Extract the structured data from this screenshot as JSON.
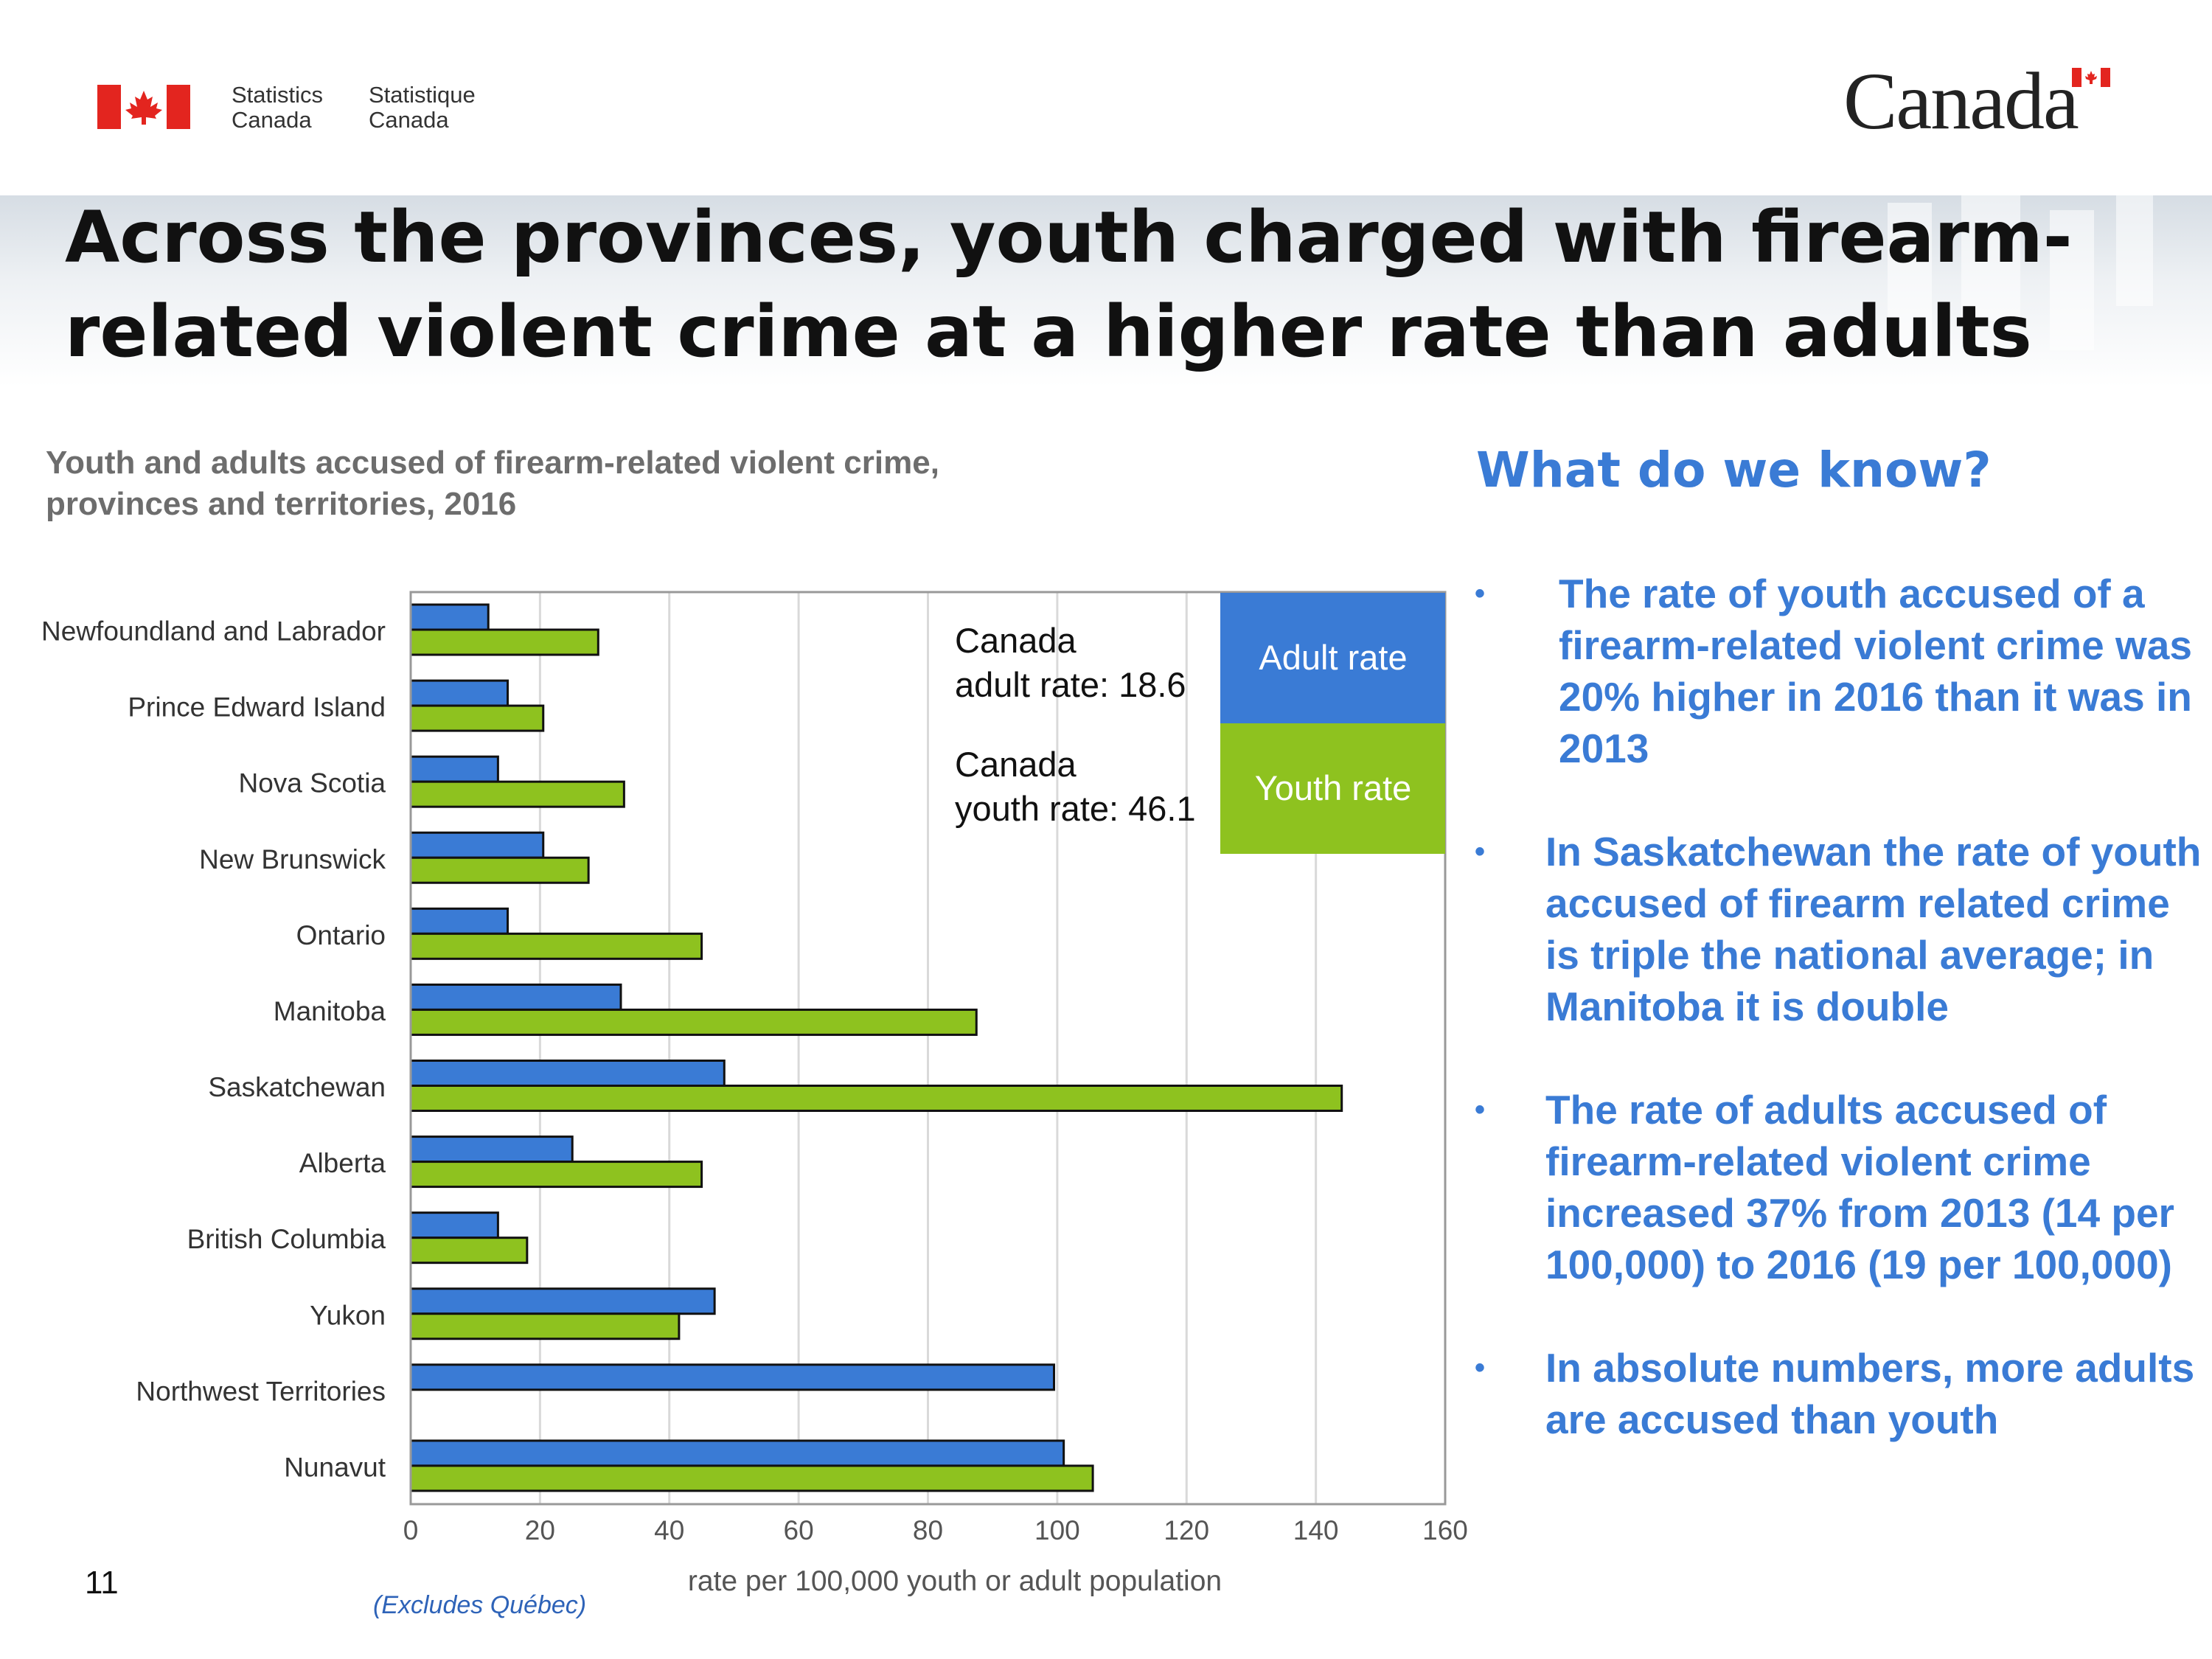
{
  "header": {
    "agency_en": [
      "Statistics",
      "Canada"
    ],
    "agency_fr": [
      "Statistique",
      "Canada"
    ],
    "wordmark": "Canada",
    "colors": {
      "flag_red": "#e3251f"
    }
  },
  "slide": {
    "title_line1": "Across the provinces, youth charged with firearm-",
    "title_line2": "related violent crime at a higher rate than adults",
    "page_number": "11",
    "footnote": "(Excludes Québec)"
  },
  "chart_data": {
    "type": "bar",
    "orientation": "horizontal",
    "title_line1": "Youth and adults accused of firearm-related violent crime,",
    "title_line2": "provinces and territories, 2016",
    "xlabel": "rate per 100,000 youth or adult population",
    "ylabel": "",
    "xlim": [
      0,
      160
    ],
    "xticks": [
      0,
      20,
      40,
      60,
      80,
      100,
      120,
      140,
      160
    ],
    "grid": true,
    "legend_placement": "top-right",
    "categories": [
      "Newfoundland and Labrador",
      "Prince Edward Island",
      "Nova Scotia",
      "New Brunswick",
      "Ontario",
      "Manitoba",
      "Saskatchewan",
      "Alberta",
      "British Columbia",
      "Yukon",
      "Northwest Territories",
      "Nunavut"
    ],
    "series": [
      {
        "name": "Adult rate",
        "color": "#3a7bd5",
        "values": [
          12,
          15,
          13.5,
          20.5,
          15,
          32.5,
          48.5,
          25,
          13.5,
          47,
          99.5,
          101
        ]
      },
      {
        "name": "Youth rate",
        "color": "#8ec21f",
        "values": [
          29,
          20.5,
          33,
          27.5,
          45,
          87.5,
          144,
          45,
          18,
          41.5,
          null,
          105.5
        ]
      }
    ],
    "annotations": [
      {
        "line1": "Canada",
        "line2": "adult rate: 18.6"
      },
      {
        "line1": "Canada",
        "line2": "youth rate: 46.1"
      }
    ]
  },
  "panel": {
    "heading": "What do we know?",
    "bullet_char": "•",
    "bullets": [
      "The rate of youth accused of a firearm-related violent crime was 20% higher in 2016 than it was in 2013",
      "In Saskatchewan the rate of youth accused of firearm related crime is triple the national average; in Manitoba it is double",
      "The rate of adults accused of firearm-related violent crime increased 37% from 2013 (14 per 100,000) to 2016 (19 per 100,000)",
      "In absolute numbers, more adults are accused than youth"
    ]
  }
}
